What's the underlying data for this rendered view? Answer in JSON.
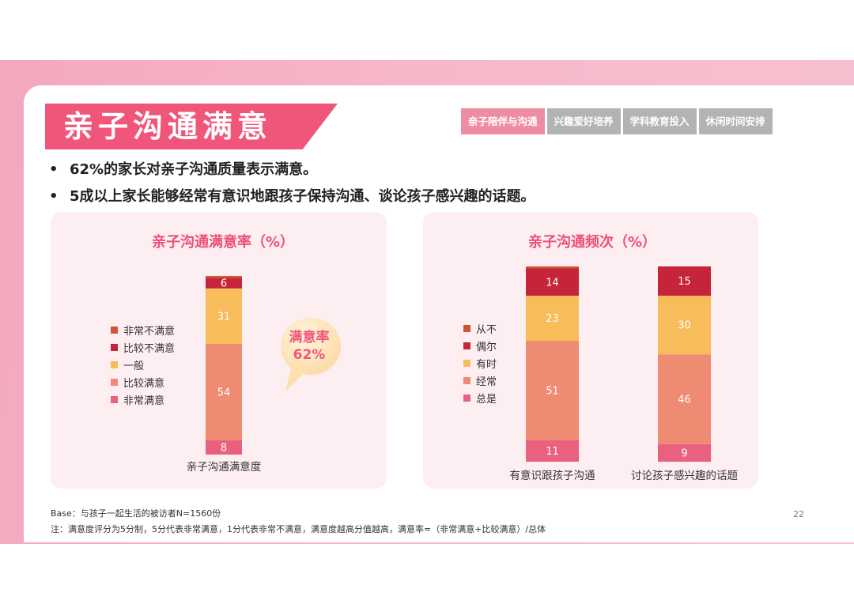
{
  "title": "亲子沟通满意",
  "tabs": [
    {
      "label": "亲子陪伴与沟通",
      "active": true
    },
    {
      "label": "兴趣爱好培养",
      "active": false
    },
    {
      "label": "学科教育投入",
      "active": false
    },
    {
      "label": "休闲时间安排",
      "active": false
    }
  ],
  "bullets": [
    "62%的家长对亲子沟通质量表示满意。",
    "5成以上家长能够经常有意识地跟孩子保持沟通、谈论孩子感兴趣的话题。"
  ],
  "bubble": {
    "line1": "满意率",
    "line2": "62%"
  },
  "footer": {
    "base": "Base：与孩子一起生活的被访者N=1560份",
    "note": "注：满意度评分为5分制，5分代表非常满意，1分代表非常不满意，满意度越高分值越高，满意率=（非常满意+比较满意）/总体"
  },
  "page_number": "22",
  "colors": {
    "accent": "#f0567a",
    "level1": "#e9617f",
    "level2": "#ef8b73",
    "level3": "#f8bc5b",
    "level4": "#c5243a",
    "level5": "#d35230"
  },
  "chart_data": [
    {
      "type": "bar",
      "stacked": true,
      "title": "亲子沟通满意率（%）",
      "categories": [
        "亲子沟通满意度"
      ],
      "legend_position": "left",
      "series": [
        {
          "name": "非常满意",
          "values": [
            8
          ],
          "color": "#e9617f"
        },
        {
          "name": "比较满意",
          "values": [
            54
          ],
          "color": "#ef8b73"
        },
        {
          "name": "一般",
          "values": [
            31
          ],
          "color": "#f8bc5b"
        },
        {
          "name": "比较不满意",
          "values": [
            6
          ],
          "color": "#c5243a"
        },
        {
          "name": "非常不满意",
          "values": [
            1
          ],
          "color": "#d35230"
        }
      ]
    },
    {
      "type": "bar",
      "stacked": true,
      "title": "亲子沟通频次（%）",
      "categories": [
        "有意识跟孩子沟通",
        "讨论孩子感兴趣的话题"
      ],
      "legend_position": "left",
      "series": [
        {
          "name": "总是",
          "values": [
            11,
            9
          ],
          "color": "#e9617f"
        },
        {
          "name": "经常",
          "values": [
            51,
            46
          ],
          "color": "#ef8b73"
        },
        {
          "name": "有时",
          "values": [
            23,
            30
          ],
          "color": "#f8bc5b"
        },
        {
          "name": "偶尔",
          "values": [
            14,
            15
          ],
          "color": "#c5243a"
        },
        {
          "name": "从不",
          "values": [
            1,
            0
          ],
          "color": "#d35230"
        }
      ]
    }
  ]
}
